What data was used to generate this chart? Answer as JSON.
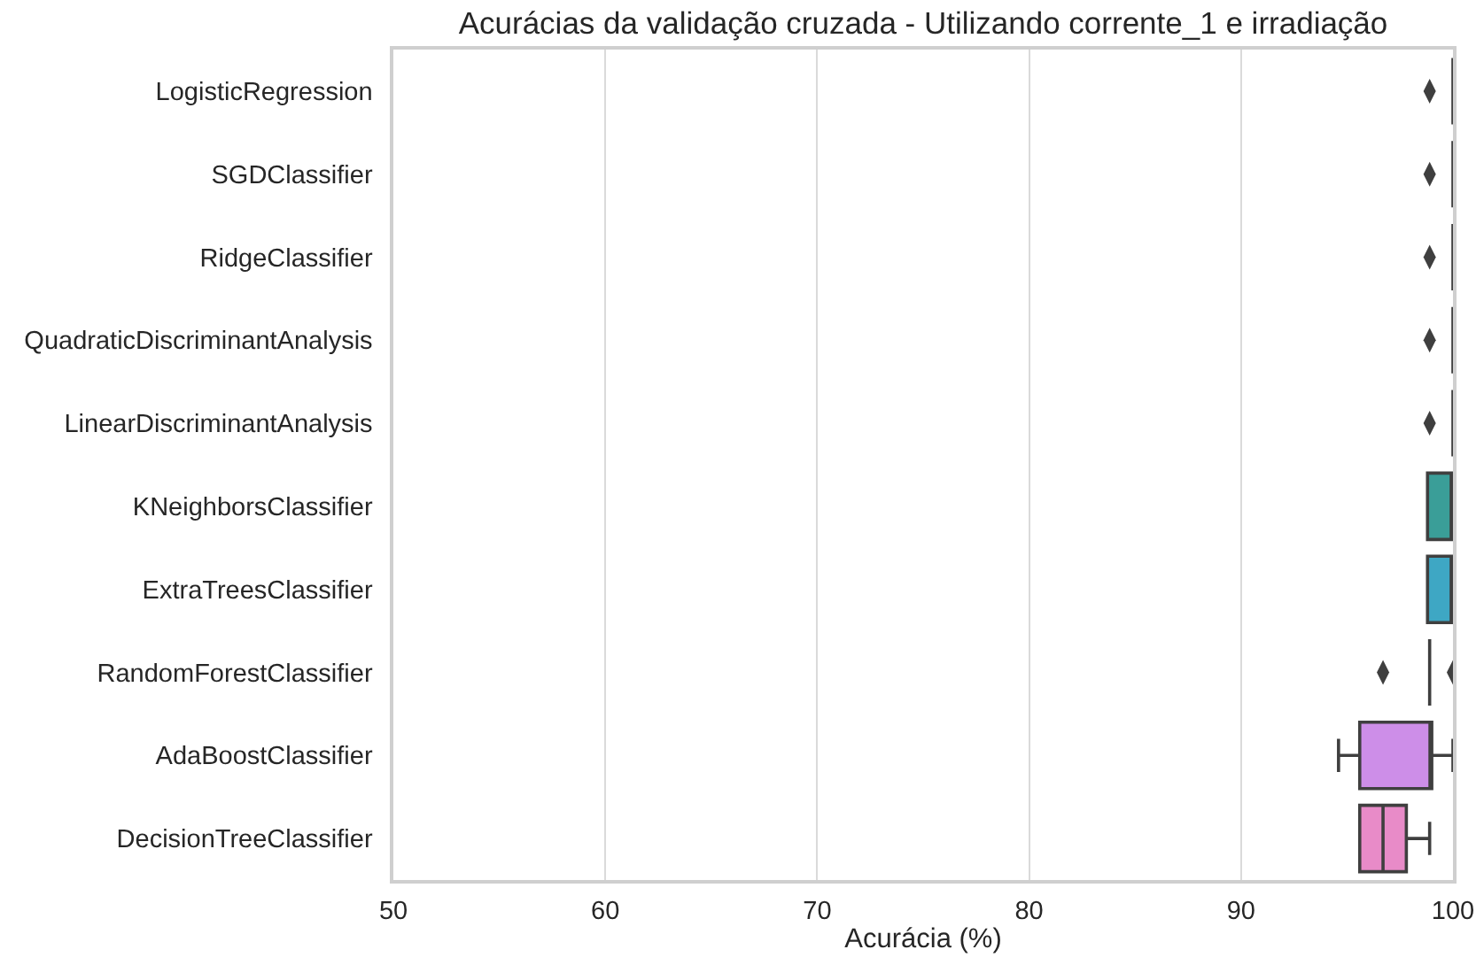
{
  "chart_data": {
    "type": "box",
    "title": "Acurácias da validação cruzada - Utilizando corrente_1 e irradiação",
    "xlabel": "Acurácia (%)",
    "orientation": "horizontal",
    "categories": [
      "LogisticRegression",
      "SGDClassifier",
      "RidgeClassifier",
      "QuadraticDiscriminantAnalysis",
      "LinearDiscriminantAnalysis",
      "KNeighborsClassifier",
      "ExtraTreesClassifier",
      "RandomForestClassifier",
      "AdaBoostClassifier",
      "DecisionTreeClassifier"
    ],
    "colors": [
      null,
      null,
      null,
      null,
      null,
      "#3a9e98",
      "#3ea7c4",
      null,
      "#cd8ee8",
      "#e88bc8"
    ],
    "boxes": [
      {
        "low": 100,
        "q1": 100,
        "median": 100,
        "q3": 100,
        "high": 100,
        "outliers": [
          98.9
        ]
      },
      {
        "low": 100,
        "q1": 100,
        "median": 100,
        "q3": 100,
        "high": 100,
        "outliers": [
          98.9
        ]
      },
      {
        "low": 100,
        "q1": 100,
        "median": 100,
        "q3": 100,
        "high": 100,
        "outliers": [
          98.9
        ]
      },
      {
        "low": 100,
        "q1": 100,
        "median": 100,
        "q3": 100,
        "high": 100,
        "outliers": [
          98.9
        ]
      },
      {
        "low": 100,
        "q1": 100,
        "median": 100,
        "q3": 100,
        "high": 100,
        "outliers": [
          98.9
        ]
      },
      {
        "low": 98.8,
        "q1": 98.8,
        "median": 100,
        "q3": 100,
        "high": 100
      },
      {
        "low": 98.8,
        "q1": 98.8,
        "median": 100,
        "q3": 100,
        "high": 100
      },
      {
        "low": 98.9,
        "q1": 98.9,
        "median": 98.9,
        "q3": 98.9,
        "high": 98.9,
        "outliers": [
          96.7,
          100
        ]
      },
      {
        "low": 94.6,
        "q1": 95.6,
        "median": 99.0,
        "q3": 99.0,
        "high": 100
      },
      {
        "low": 95.6,
        "q1": 95.6,
        "median": 96.7,
        "q3": 97.8,
        "high": 98.9
      }
    ],
    "xlim": [
      50,
      100
    ],
    "xticks": [
      50,
      60,
      70,
      80,
      90,
      100
    ],
    "grid": "x",
    "marker": "diamond"
  }
}
